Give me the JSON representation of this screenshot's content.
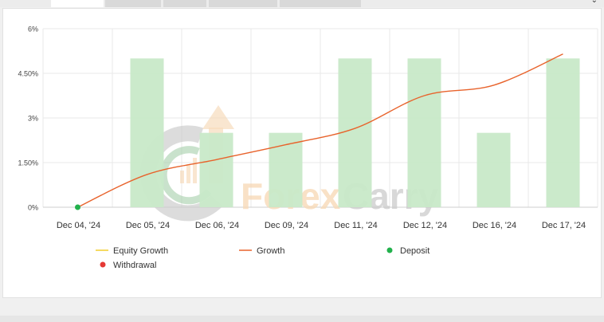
{
  "chart_data": {
    "type": "bar",
    "categories": [
      "Dec 04, '24",
      "Dec 05, '24",
      "Dec 06, '24",
      "Dec 09, '24",
      "Dec 11, '24",
      "Dec 12, '24",
      "Dec 16, '24",
      "Dec 17, '24"
    ],
    "y_ticks": [
      "6%",
      "4.50%",
      "3%",
      "1.50%",
      "0%"
    ],
    "ylim": [
      0,
      6
    ],
    "bar_values": [
      0,
      5,
      2.5,
      2.5,
      5,
      5,
      2.5,
      5
    ],
    "growth_values": [
      0,
      1.1,
      1.6,
      2.1,
      2.65,
      3.75,
      4.1,
      5.15
    ],
    "deposit_points": [
      {
        "category": "Dec 04, '24",
        "value": 0
      }
    ],
    "colors": {
      "bar": "#c8e9c8",
      "growth": "#e8632c",
      "equity": "#f2cd2e",
      "deposit": "#22b14c",
      "withdrawal": "#e53935",
      "grid": "#e9e9e9"
    },
    "legend": {
      "equity_growth": "Equity Growth",
      "growth": "Growth",
      "deposit": "Deposit",
      "withdrawal": "Withdrawal"
    },
    "watermark": "ForexCarry",
    "grid": true
  }
}
